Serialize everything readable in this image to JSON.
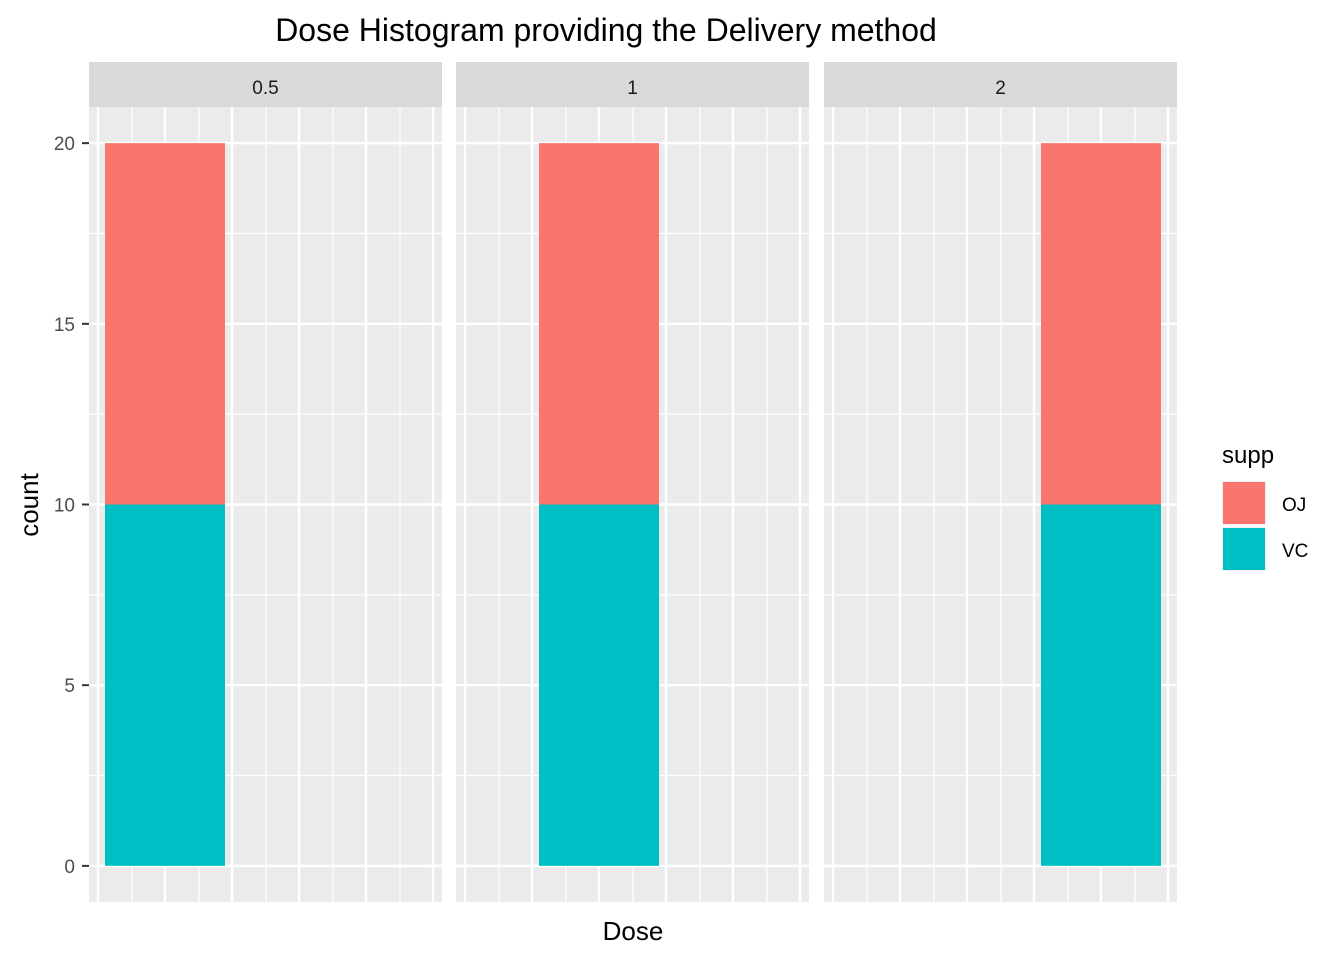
{
  "chart_data": {
    "type": "bar",
    "title": "Dose Histogram providing  the Delivery method",
    "xlabel": "Dose",
    "ylabel": "count",
    "ylim": [
      -1,
      21
    ],
    "y_ticks": [
      0,
      5,
      10,
      15,
      20
    ],
    "stacked": true,
    "panels": [
      {
        "label": "0.5",
        "series": [
          {
            "name": "VC",
            "value": 10
          },
          {
            "name": "OJ",
            "value": 10
          }
        ]
      },
      {
        "label": "1",
        "series": [
          {
            "name": "VC",
            "value": 10
          },
          {
            "name": "OJ",
            "value": 10
          }
        ]
      },
      {
        "label": "2",
        "series": [
          {
            "name": "VC",
            "value": 10
          },
          {
            "name": "OJ",
            "value": 10
          }
        ]
      }
    ],
    "legend": {
      "title": "supp",
      "placement": "right",
      "entries": [
        {
          "name": "OJ",
          "color": "#F8766D"
        },
        {
          "name": "VC",
          "color": "#00BFC4"
        }
      ]
    },
    "grid": true,
    "colors": {
      "panel_bg": "#EBEBEB",
      "strip_bg": "#D9D9D9",
      "grid": "#FFFFFF"
    }
  }
}
